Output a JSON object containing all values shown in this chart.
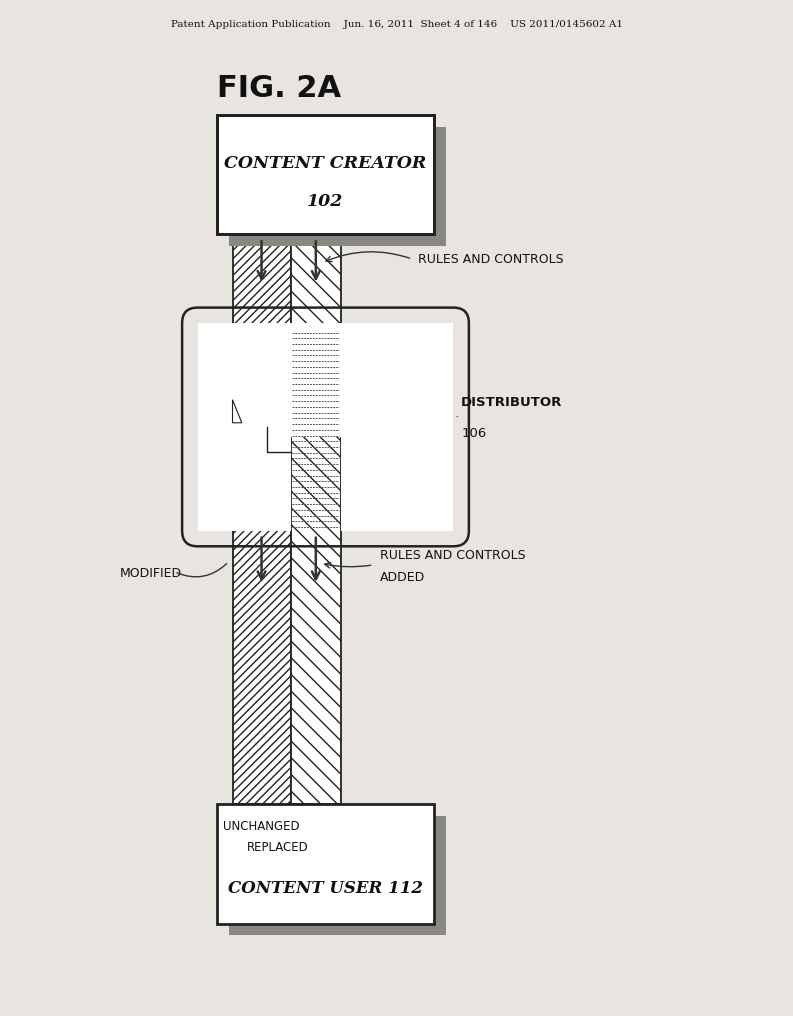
{
  "bg_color": "#e8e4df",
  "header_text": "Patent Application Publication    Jun. 16, 2011  Sheet 4 of 146    US 2011/0145602 A1",
  "fig_label": "FIG. 2A",
  "box1_line1": "CONTENT CREATOR",
  "box1_line2": "102",
  "box2_line1": "DISTRIBUTOR",
  "box2_line2": "106",
  "box3_main": "CONTENT USER 112",
  "box3_unchanged": "UNCHANGED",
  "box3_replaced": "REPLACED",
  "rules1": "RULES AND CONTROLS",
  "rules2": "RULES AND CONTROLS",
  "added": "ADDED",
  "modified": "MODIFIED",
  "ec": "#222222",
  "ac": "#333333",
  "shadow_color": "#888880"
}
